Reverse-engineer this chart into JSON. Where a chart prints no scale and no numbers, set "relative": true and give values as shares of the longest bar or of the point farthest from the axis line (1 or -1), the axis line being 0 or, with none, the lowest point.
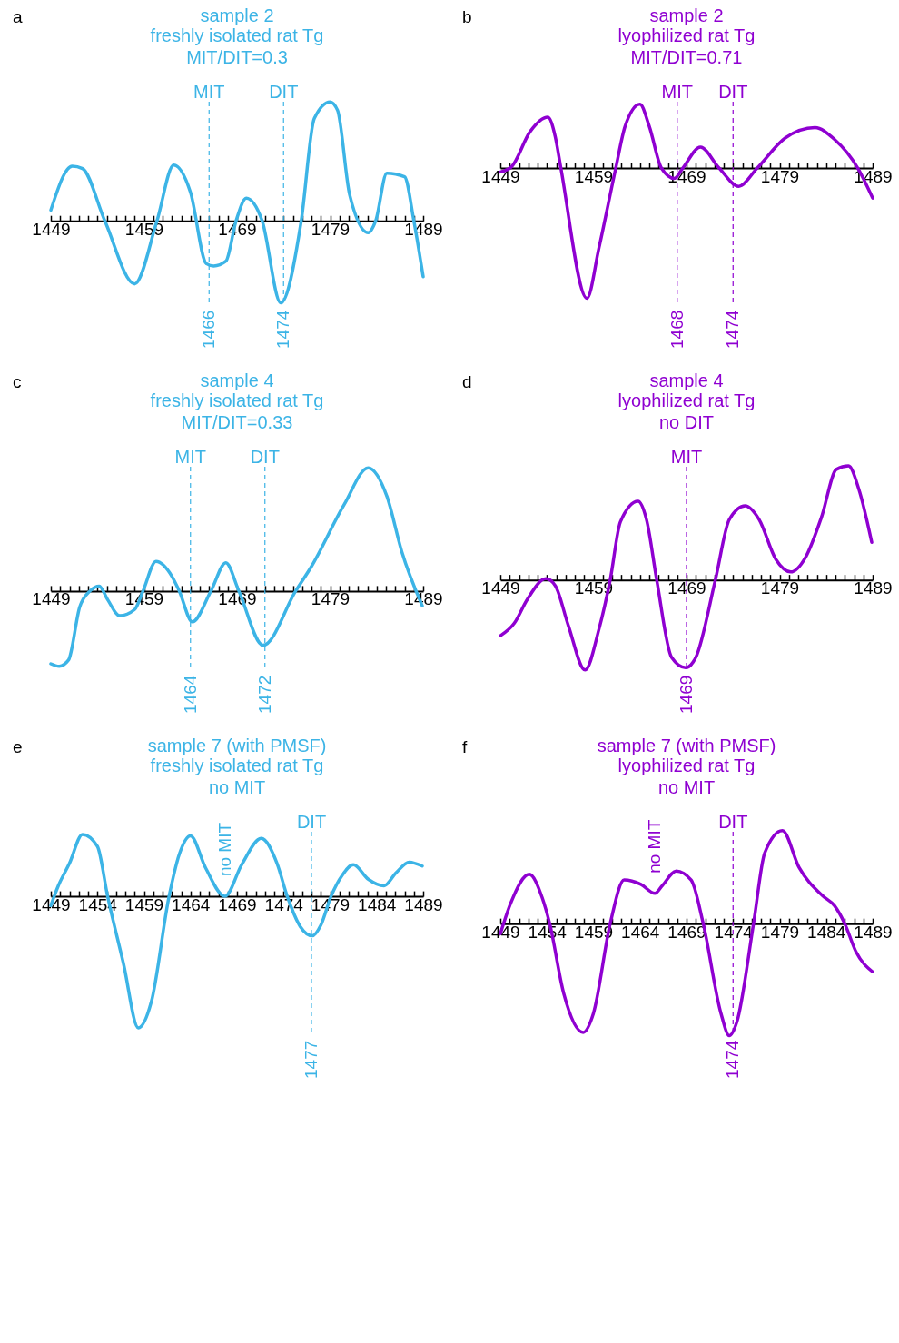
{
  "chart_data": [
    {
      "type": "line",
      "title": "sample 2",
      "subtitle": "freshly isolated rat Tg\nMIT/DIT=0.3",
      "color": "#3cb4e6",
      "relative": true,
      "annotations": [
        "a",
        "1466",
        "1474"
      ],
      "x": [
        1449,
        1451.3,
        1452.4,
        1454.8,
        1458,
        1460.4,
        1462.2,
        1464,
        1465.7,
        1466.5,
        1467.8,
        1468.9,
        1470,
        1471.7,
        1473.7,
        1475.9,
        1477.3,
        1479,
        1479.8,
        1481.1,
        1483.1,
        1483.9,
        1485.1,
        1487,
        1488,
        1489
      ],
      "values": [
        0.09,
        0.46,
        0.44,
        0,
        -0.53,
        0,
        0.47,
        0.24,
        -0.36,
        -0.38,
        -0.34,
        0,
        0.19,
        0,
        -0.69,
        0,
        0.86,
        1,
        0.93,
        0.22,
        -0.1,
        0,
        0.4,
        0.37,
        0,
        -0.47
      ],
      "xlim": [
        1449,
        1489
      ],
      "xticks": [
        1449,
        {
          "value": 1450,
          "label": null
        },
        {
          "value": 1451,
          "label": null
        },
        {
          "value": 1452,
          "label": null
        },
        {
          "value": 1453,
          "label": null
        },
        {
          "value": 1454,
          "label": null
        },
        {
          "value": 1455,
          "label": null
        },
        {
          "value": 1456,
          "label": null
        },
        {
          "value": 1457,
          "label": null
        },
        {
          "value": 1458,
          "label": null
        },
        1459,
        {
          "value": 1460,
          "label": null
        },
        {
          "value": 1461,
          "label": null
        },
        {
          "value": 1462,
          "label": null
        },
        {
          "value": 1463,
          "label": null
        },
        {
          "value": 1464,
          "label": null
        },
        {
          "value": 1465,
          "label": null
        },
        {
          "value": 1466,
          "label": null
        },
        {
          "value": 1467,
          "label": null
        },
        {
          "value": 1468,
          "label": null
        },
        1469,
        {
          "value": 1470,
          "label": null
        },
        {
          "value": 1471,
          "label": null
        },
        {
          "value": 1472,
          "label": null
        },
        {
          "value": 1473,
          "label": null
        },
        {
          "value": 1474,
          "label": null
        },
        {
          "value": 1475,
          "label": null
        },
        {
          "value": 1476,
          "label": null
        },
        {
          "value": 1477,
          "label": null
        },
        {
          "value": 1478,
          "label": null
        },
        1479,
        {
          "value": 1480,
          "label": null
        },
        {
          "value": 1481,
          "label": null
        },
        {
          "value": 1482,
          "label": null
        },
        {
          "value": 1483,
          "label": null
        },
        {
          "value": 1484,
          "label": null
        },
        {
          "value": 1485,
          "label": null
        },
        {
          "value": 1486,
          "label": null
        },
        {
          "value": 1487,
          "label": null
        },
        {
          "value": 1488,
          "label": null
        },
        1489
      ],
      "ref_lines": [
        {
          "axis": "x",
          "value": 1466,
          "label": "MIT",
          "color": "#3cb4e6",
          "line_style": "dashed"
        },
        {
          "axis": "x",
          "value": 1474,
          "label": "DIT",
          "color": "#3cb4e6",
          "line_style": "dashed"
        }
      ]
    },
    {
      "type": "line",
      "title": "sample 2",
      "subtitle": "lyophilized rat Tg\nMIT/DIT=0.71",
      "color": "#8f00d1",
      "relative": true,
      "annotations": [
        "b",
        "1468",
        "1474"
      ],
      "x": [
        1449,
        1450.2,
        1452.2,
        1454.1,
        1454.9,
        1455.5,
        1458.3,
        1459.6,
        1461.4,
        1462.4,
        1464,
        1465,
        1466.3,
        1467.7,
        1468.6,
        1470.5,
        1472.5,
        1474.6,
        1476.6,
        1479.6,
        1482.8,
        1484.9,
        1487.4,
        1489
      ],
      "values": [
        -0.03,
        0.01,
        0.28,
        0.39,
        0.24,
        0,
        -1,
        -0.61,
        0,
        0.32,
        0.49,
        0.32,
        0,
        -0.08,
        0,
        0.16,
        0,
        -0.14,
        0,
        0.23,
        0.31,
        0.22,
        0,
        -0.23
      ],
      "xlim": [
        1449,
        1489
      ],
      "xticks": [
        1449,
        {
          "value": 1450,
          "label": null
        },
        {
          "value": 1451,
          "label": null
        },
        {
          "value": 1452,
          "label": null
        },
        {
          "value": 1453,
          "label": null
        },
        {
          "value": 1454,
          "label": null
        },
        {
          "value": 1455,
          "label": null
        },
        {
          "value": 1456,
          "label": null
        },
        {
          "value": 1457,
          "label": null
        },
        {
          "value": 1458,
          "label": null
        },
        1459,
        {
          "value": 1460,
          "label": null
        },
        {
          "value": 1461,
          "label": null
        },
        {
          "value": 1462,
          "label": null
        },
        {
          "value": 1463,
          "label": null
        },
        {
          "value": 1464,
          "label": null
        },
        {
          "value": 1465,
          "label": null
        },
        {
          "value": 1466,
          "label": null
        },
        {
          "value": 1467,
          "label": null
        },
        {
          "value": 1468,
          "label": null
        },
        1469,
        {
          "value": 1470,
          "label": null
        },
        {
          "value": 1471,
          "label": null
        },
        {
          "value": 1472,
          "label": null
        },
        {
          "value": 1473,
          "label": null
        },
        {
          "value": 1474,
          "label": null
        },
        {
          "value": 1475,
          "label": null
        },
        {
          "value": 1476,
          "label": null
        },
        {
          "value": 1477,
          "label": null
        },
        {
          "value": 1478,
          "label": null
        },
        1479,
        {
          "value": 1480,
          "label": null
        },
        {
          "value": 1481,
          "label": null
        },
        {
          "value": 1482,
          "label": null
        },
        {
          "value": 1483,
          "label": null
        },
        {
          "value": 1484,
          "label": null
        },
        {
          "value": 1485,
          "label": null
        },
        {
          "value": 1486,
          "label": null
        },
        {
          "value": 1487,
          "label": null
        },
        {
          "value": 1488,
          "label": null
        },
        1489
      ],
      "ref_lines": [
        {
          "axis": "x",
          "value": 1468,
          "label": "MIT",
          "color": "#8f00d1",
          "line_style": "dashed"
        },
        {
          "axis": "x",
          "value": 1474,
          "label": "DIT",
          "color": "#8f00d1",
          "line_style": "dashed"
        }
      ]
    },
    {
      "type": "line",
      "title": "sample 4",
      "subtitle": "freshly isolated rat Tg\nMIT/DIT=0.33",
      "color": "#3cb4e6",
      "relative": true,
      "annotations": [
        "c",
        "1464",
        "1472"
      ],
      "x": [
        1449,
        1449.9,
        1450.9,
        1452.1,
        1453.2,
        1454.2,
        1455.1,
        1456.4,
        1458,
        1458.9,
        1460.3,
        1462,
        1462.8,
        1464.2,
        1466.2,
        1467.8,
        1469.2,
        1471.8,
        1475.3,
        1477,
        1480.5,
        1483.1,
        1485.1,
        1486.7,
        1488.9
      ],
      "values": [
        -0.59,
        -0.61,
        -0.56,
        -0.13,
        0,
        0.04,
        -0.07,
        -0.2,
        -0.15,
        0,
        0.24,
        0.12,
        0,
        -0.25,
        0,
        0.23,
        0,
        -0.44,
        0,
        0.2,
        0.7,
        1,
        0.77,
        0.32,
        -0.12
      ],
      "xlim": [
        1449,
        1489
      ],
      "xticks": [
        1449,
        {
          "value": 1450,
          "label": null
        },
        {
          "value": 1451,
          "label": null
        },
        {
          "value": 1452,
          "label": null
        },
        {
          "value": 1453,
          "label": null
        },
        {
          "value": 1454,
          "label": null
        },
        {
          "value": 1455,
          "label": null
        },
        {
          "value": 1456,
          "label": null
        },
        {
          "value": 1457,
          "label": null
        },
        {
          "value": 1458,
          "label": null
        },
        1459,
        {
          "value": 1460,
          "label": null
        },
        {
          "value": 1461,
          "label": null
        },
        {
          "value": 1462,
          "label": null
        },
        {
          "value": 1463,
          "label": null
        },
        {
          "value": 1464,
          "label": null
        },
        {
          "value": 1465,
          "label": null
        },
        {
          "value": 1466,
          "label": null
        },
        {
          "value": 1467,
          "label": null
        },
        {
          "value": 1468,
          "label": null
        },
        1469,
        {
          "value": 1470,
          "label": null
        },
        {
          "value": 1471,
          "label": null
        },
        {
          "value": 1472,
          "label": null
        },
        {
          "value": 1473,
          "label": null
        },
        {
          "value": 1474,
          "label": null
        },
        {
          "value": 1475,
          "label": null
        },
        {
          "value": 1476,
          "label": null
        },
        {
          "value": 1477,
          "label": null
        },
        {
          "value": 1478,
          "label": null
        },
        1479,
        {
          "value": 1480,
          "label": null
        },
        {
          "value": 1481,
          "label": null
        },
        {
          "value": 1482,
          "label": null
        },
        {
          "value": 1483,
          "label": null
        },
        {
          "value": 1484,
          "label": null
        },
        {
          "value": 1485,
          "label": null
        },
        {
          "value": 1486,
          "label": null
        },
        {
          "value": 1487,
          "label": null
        },
        {
          "value": 1488,
          "label": null
        },
        1489
      ],
      "ref_lines": [
        {
          "axis": "x",
          "value": 1464,
          "label": "MIT",
          "color": "#3cb4e6",
          "line_style": "dashed"
        },
        {
          "axis": "x",
          "value": 1472,
          "label": "DIT",
          "color": "#3cb4e6",
          "line_style": "dashed"
        }
      ]
    },
    {
      "type": "line",
      "title": "sample 4",
      "subtitle": "lyophilized rat Tg\nno DIT",
      "color": "#8f00d1",
      "relative": true,
      "annotations": [
        "d",
        "1469"
      ],
      "x": [
        1449,
        1450.5,
        1451.9,
        1453.9,
        1454.9,
        1456.3,
        1458.1,
        1459.6,
        1460.8,
        1461.9,
        1463.8,
        1464.7,
        1465.8,
        1467.4,
        1468.9,
        1470,
        1472.1,
        1473.6,
        1475.3,
        1476.8,
        1478.6,
        1480.2,
        1481.8,
        1483.5,
        1485.1,
        1486.4,
        1487.5,
        1488.9
      ],
      "values": [
        -0.49,
        -0.38,
        -0.17,
        0.01,
        -0.05,
        -0.4,
        -0.79,
        -0.43,
        0,
        0.51,
        0.69,
        0.53,
        0,
        -0.68,
        -0.77,
        -0.68,
        0,
        0.53,
        0.65,
        0.53,
        0.18,
        0.07,
        0.2,
        0.55,
        0.97,
        1,
        0.8,
        0.33
      ],
      "xlim": [
        1449,
        1489
      ],
      "xticks": [
        1449,
        {
          "value": 1450,
          "label": null
        },
        {
          "value": 1451,
          "label": null
        },
        {
          "value": 1452,
          "label": null
        },
        {
          "value": 1453,
          "label": null
        },
        {
          "value": 1454,
          "label": null
        },
        {
          "value": 1455,
          "label": null
        },
        {
          "value": 1456,
          "label": null
        },
        {
          "value": 1457,
          "label": null
        },
        {
          "value": 1458,
          "label": null
        },
        1459,
        {
          "value": 1460,
          "label": null
        },
        {
          "value": 1461,
          "label": null
        },
        {
          "value": 1462,
          "label": null
        },
        {
          "value": 1463,
          "label": null
        },
        {
          "value": 1464,
          "label": null
        },
        {
          "value": 1465,
          "label": null
        },
        {
          "value": 1466,
          "label": null
        },
        {
          "value": 1467,
          "label": null
        },
        {
          "value": 1468,
          "label": null
        },
        1469,
        {
          "value": 1470,
          "label": null
        },
        {
          "value": 1471,
          "label": null
        },
        {
          "value": 1472,
          "label": null
        },
        {
          "value": 1473,
          "label": null
        },
        {
          "value": 1474,
          "label": null
        },
        {
          "value": 1475,
          "label": null
        },
        {
          "value": 1476,
          "label": null
        },
        {
          "value": 1477,
          "label": null
        },
        {
          "value": 1478,
          "label": null
        },
        1479,
        {
          "value": 1480,
          "label": null
        },
        {
          "value": 1481,
          "label": null
        },
        {
          "value": 1482,
          "label": null
        },
        {
          "value": 1483,
          "label": null
        },
        {
          "value": 1484,
          "label": null
        },
        {
          "value": 1485,
          "label": null
        },
        {
          "value": 1486,
          "label": null
        },
        {
          "value": 1487,
          "label": null
        },
        {
          "value": 1488,
          "label": null
        },
        1489
      ],
      "ref_lines": [
        {
          "axis": "x",
          "value": 1469,
          "label": "MIT",
          "color": "#8f00d1",
          "line_style": "dashed"
        }
      ]
    },
    {
      "type": "line",
      "title": "sample 7 (with PMSF)",
      "subtitle": "freshly isolated rat Tg\nno MIT",
      "color": "#3cb4e6",
      "relative": true,
      "annotations": [
        "e",
        "1477",
        {
          "text": "no MIT",
          "x": 1467.7,
          "y": 0
        }
      ],
      "x": [
        1449,
        1449.8,
        1451,
        1452.4,
        1454,
        1455.1,
        1456.8,
        1458.4,
        1459.8,
        1461.7,
        1462.8,
        1464,
        1465.6,
        1467.7,
        1469.5,
        1471.6,
        1473.3,
        1474.4,
        1475.8,
        1477.1,
        1478,
        1479.1,
        1480.3,
        1481.5,
        1483.1,
        1484.8,
        1486.1,
        1487.5,
        1488.9
      ],
      "values": [
        -0.07,
        0.08,
        0.25,
        0.47,
        0.38,
        0,
        -0.51,
        -1,
        -0.8,
        0,
        0.32,
        0.46,
        0.22,
        0,
        0.24,
        0.44,
        0.25,
        0,
        -0.23,
        -0.3,
        -0.22,
        0,
        0.16,
        0.24,
        0.13,
        0.08,
        0.18,
        0.26,
        0.23
      ],
      "xlim": [
        1449,
        1489
      ],
      "xticks": [
        1449,
        {
          "value": 1450,
          "label": null
        },
        {
          "value": 1451,
          "label": null
        },
        {
          "value": 1452,
          "label": null
        },
        {
          "value": 1453,
          "label": null
        },
        1454,
        {
          "value": 1455,
          "label": null
        },
        {
          "value": 1456,
          "label": null
        },
        {
          "value": 1457,
          "label": null
        },
        {
          "value": 1458,
          "label": null
        },
        1459,
        {
          "value": 1460,
          "label": null
        },
        {
          "value": 1461,
          "label": null
        },
        {
          "value": 1462,
          "label": null
        },
        {
          "value": 1463,
          "label": null
        },
        1464,
        {
          "value": 1465,
          "label": null
        },
        {
          "value": 1466,
          "label": null
        },
        {
          "value": 1467,
          "label": null
        },
        {
          "value": 1468,
          "label": null
        },
        1469,
        {
          "value": 1470,
          "label": null
        },
        {
          "value": 1471,
          "label": null
        },
        {
          "value": 1472,
          "label": null
        },
        {
          "value": 1473,
          "label": null
        },
        1474,
        {
          "value": 1475,
          "label": null
        },
        {
          "value": 1476,
          "label": null
        },
        {
          "value": 1477,
          "label": null
        },
        {
          "value": 1478,
          "label": null
        },
        1479,
        {
          "value": 1480,
          "label": null
        },
        {
          "value": 1481,
          "label": null
        },
        {
          "value": 1482,
          "label": null
        },
        {
          "value": 1483,
          "label": null
        },
        1484,
        {
          "value": 1485,
          "label": null
        },
        {
          "value": 1486,
          "label": null
        },
        {
          "value": 1487,
          "label": null
        },
        {
          "value": 1488,
          "label": null
        },
        1489
      ],
      "ref_lines": [
        {
          "axis": "x",
          "value": 1477,
          "label": "DIT",
          "color": "#3cb4e6",
          "line_style": "dashed"
        }
      ]
    },
    {
      "type": "line",
      "title": "sample 7 (with PMSF)",
      "subtitle": "lyophilized rat Tg\nno MIT",
      "color": "#8f00d1",
      "relative": true,
      "annotations": [
        "f",
        "1474",
        {
          "text": "no MIT",
          "x": 1465.6,
          "y": 0.27
        }
      ],
      "x": [
        1449,
        1450.1,
        1452.1,
        1453.5,
        1454.3,
        1455.8,
        1457.9,
        1459,
        1460.8,
        1462.3,
        1464.1,
        1465.6,
        1466.4,
        1467.9,
        1469.5,
        1470.8,
        1472.7,
        1473.6,
        1474.4,
        1476.2,
        1477.4,
        1479.3,
        1481.1,
        1483.6,
        1484.9,
        1486,
        1487.2,
        1489
      ],
      "values": [
        -0.09,
        0.18,
        0.44,
        0.23,
        0,
        -0.62,
        -0.97,
        -0.8,
        0,
        0.39,
        0.35,
        0.27,
        0.34,
        0.47,
        0.39,
        0,
        -0.8,
        -1,
        -0.88,
        0,
        0.63,
        0.83,
        0.5,
        0.25,
        0.16,
        0,
        -0.25,
        -0.43
      ],
      "xlim": [
        1449,
        1489
      ],
      "xticks": [
        1449,
        {
          "value": 1450,
          "label": null
        },
        {
          "value": 1451,
          "label": null
        },
        {
          "value": 1452,
          "label": null
        },
        {
          "value": 1453,
          "label": null
        },
        1454,
        {
          "value": 1455,
          "label": null
        },
        {
          "value": 1456,
          "label": null
        },
        {
          "value": 1457,
          "label": null
        },
        {
          "value": 1458,
          "label": null
        },
        1459,
        {
          "value": 1460,
          "label": null
        },
        {
          "value": 1461,
          "label": null
        },
        {
          "value": 1462,
          "label": null
        },
        {
          "value": 1463,
          "label": null
        },
        1464,
        {
          "value": 1465,
          "label": null
        },
        {
          "value": 1466,
          "label": null
        },
        {
          "value": 1467,
          "label": null
        },
        {
          "value": 1468,
          "label": null
        },
        1469,
        {
          "value": 1470,
          "label": null
        },
        {
          "value": 1471,
          "label": null
        },
        {
          "value": 1472,
          "label": null
        },
        {
          "value": 1473,
          "label": null
        },
        1474,
        {
          "value": 1475,
          "label": null
        },
        {
          "value": 1476,
          "label": null
        },
        {
          "value": 1477,
          "label": null
        },
        {
          "value": 1478,
          "label": null
        },
        1479,
        {
          "value": 1480,
          "label": null
        },
        {
          "value": 1481,
          "label": null
        },
        {
          "value": 1482,
          "label": null
        },
        {
          "value": 1483,
          "label": null
        },
        1484,
        {
          "value": 1485,
          "label": null
        },
        {
          "value": 1486,
          "label": null
        },
        {
          "value": 1487,
          "label": null
        },
        {
          "value": 1488,
          "label": null
        },
        1489
      ],
      "ref_lines": [
        {
          "axis": "x",
          "value": 1474,
          "label": "DIT",
          "color": "#8f00d1",
          "line_style": "dashed"
        }
      ]
    }
  ]
}
